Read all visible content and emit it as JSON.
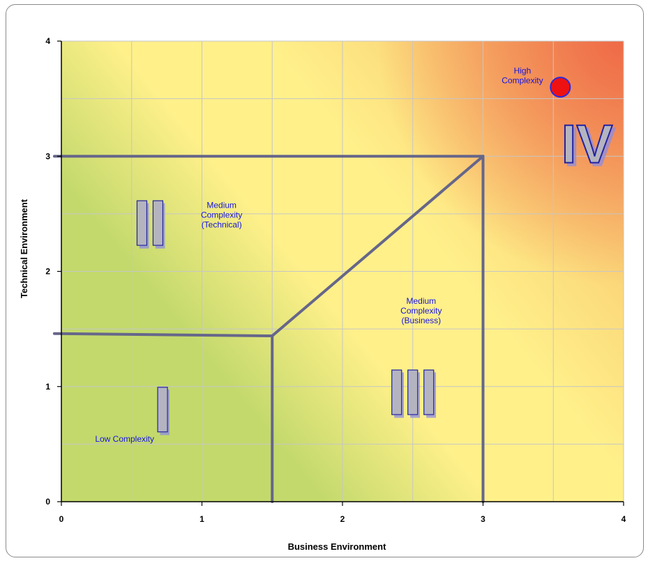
{
  "chart_data": {
    "type": "scatter",
    "xlabel": "Business Environment",
    "ylabel": "Technical Environment",
    "xlim": [
      0,
      4
    ],
    "ylim": [
      0,
      4
    ],
    "grid": true,
    "xticks": [
      "0",
      "1",
      "2",
      "3",
      "4"
    ],
    "yticks": [
      "0",
      "1",
      "2",
      "3",
      "4"
    ],
    "points": [
      {
        "x": 3.55,
        "y": 3.6
      }
    ],
    "boundaries": [
      {
        "from": [
          -0.05,
          3.0
        ],
        "to": [
          3.0,
          3.0
        ]
      },
      {
        "from": [
          3.0,
          3.0
        ],
        "to": [
          3.0,
          0.0
        ]
      },
      {
        "from": [
          -0.05,
          1.46
        ],
        "to": [
          1.5,
          1.44
        ]
      },
      {
        "from": [
          1.5,
          1.44
        ],
        "to": [
          1.5,
          0.0
        ]
      },
      {
        "from": [
          1.5,
          1.44
        ],
        "to": [
          3.0,
          3.0
        ]
      }
    ],
    "zones": [
      {
        "numeral": "I",
        "bars": 1,
        "x": 0.72,
        "y": 0.8,
        "label_lines": [
          "Low Complexity"
        ],
        "label_x": 0.45,
        "label_y": 0.52
      },
      {
        "numeral": "II",
        "bars": 2,
        "x": 0.63,
        "y": 2.42,
        "label_lines": [
          "Medium",
          "Complexity",
          "(Technical)"
        ],
        "label_x": 1.14,
        "label_y": 2.55
      },
      {
        "numeral": "III",
        "bars": 3,
        "x": 2.5,
        "y": 0.95,
        "label_lines": [
          "Medium",
          "Complexity",
          "(Business)"
        ],
        "label_x": 2.56,
        "label_y": 1.72
      },
      {
        "numeral": "IV",
        "bars": 0,
        "x": 3.74,
        "y": 3.1,
        "label_lines": [
          "High",
          "Complexity"
        ],
        "label_x": 3.28,
        "label_y": 3.72
      }
    ],
    "colors": {
      "low": "#c3d96c",
      "mid": "#fff08a",
      "high": "#ee6345",
      "grid": "#c6c6c6",
      "boundary": "#66668a",
      "marker": "#ee1111",
      "marker_edge": "#2a2ae0",
      "numeral_fill": "#b4b4c0",
      "numeral_edge": "#2020a0",
      "zone_text": "#1515e0"
    }
  }
}
